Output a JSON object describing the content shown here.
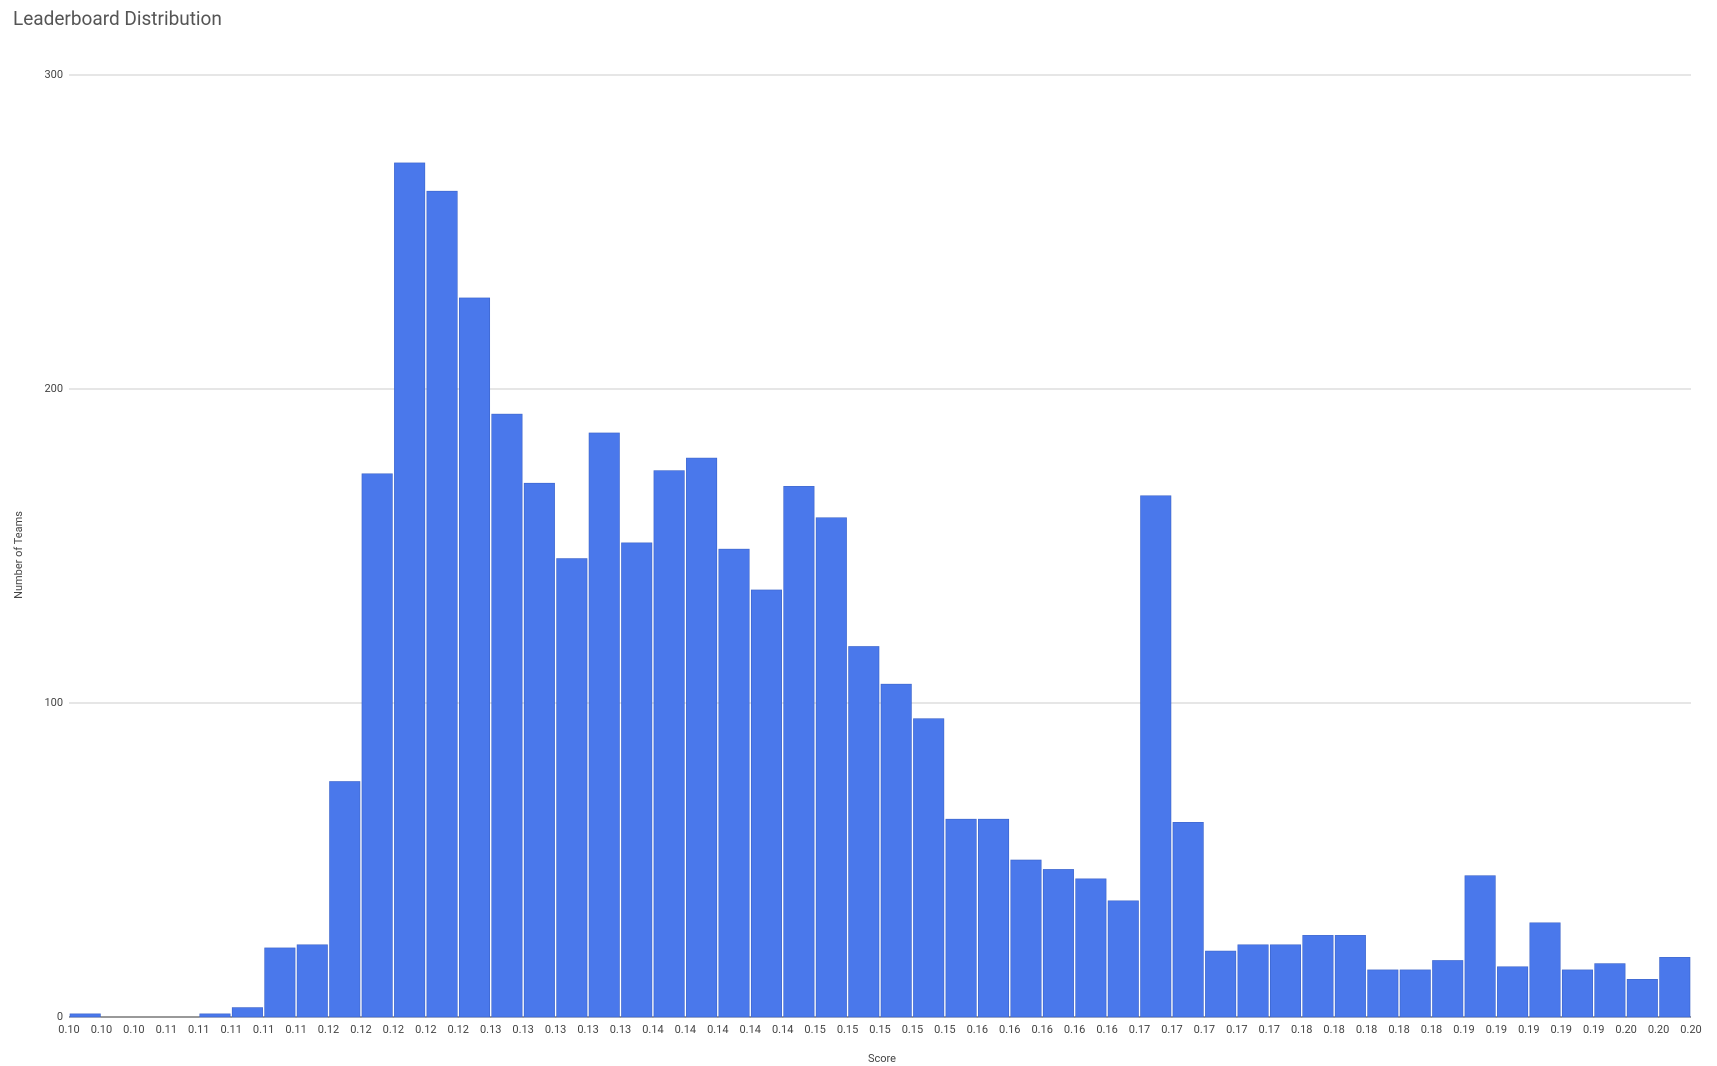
{
  "chart_data": {
    "type": "histogram",
    "title": "Leaderboard Distribution",
    "x_label": "Score",
    "y_label": "Number of Teams",
    "bins": [
      {
        "value": 0.1,
        "label": "0.10"
      },
      {
        "value": 0.102,
        "label": "0.10"
      },
      {
        "value": 0.104,
        "label": "0.10"
      },
      {
        "value": 0.106,
        "label": "0.11"
      },
      {
        "value": 0.108,
        "label": "0.11"
      },
      {
        "value": 0.11,
        "label": "0.11"
      },
      {
        "value": 0.112,
        "label": "0.11"
      },
      {
        "value": 0.114,
        "label": "0.11"
      },
      {
        "value": 0.116,
        "label": "0.12"
      },
      {
        "value": 0.118,
        "label": "0.12"
      },
      {
        "value": 0.12,
        "label": "0.12"
      },
      {
        "value": 0.122,
        "label": "0.12"
      },
      {
        "value": 0.124,
        "label": "0.12"
      },
      {
        "value": 0.126,
        "label": "0.13"
      },
      {
        "value": 0.128,
        "label": "0.13"
      },
      {
        "value": 0.13,
        "label": "0.13"
      },
      {
        "value": 0.132,
        "label": "0.13"
      },
      {
        "value": 0.134,
        "label": "0.13"
      },
      {
        "value": 0.136,
        "label": "0.14"
      },
      {
        "value": 0.138,
        "label": "0.14"
      },
      {
        "value": 0.14,
        "label": "0.14"
      },
      {
        "value": 0.142,
        "label": "0.14"
      },
      {
        "value": 0.144,
        "label": "0.14"
      },
      {
        "value": 0.146,
        "label": "0.15"
      },
      {
        "value": 0.148,
        "label": "0.15"
      },
      {
        "value": 0.15,
        "label": "0.15"
      },
      {
        "value": 0.152,
        "label": "0.15"
      },
      {
        "value": 0.154,
        "label": "0.15"
      },
      {
        "value": 0.156,
        "label": "0.16"
      },
      {
        "value": 0.158,
        "label": "0.16"
      },
      {
        "value": 0.16,
        "label": "0.16"
      },
      {
        "value": 0.162,
        "label": "0.16"
      },
      {
        "value": 0.164,
        "label": "0.16"
      },
      {
        "value": 0.166,
        "label": "0.17"
      },
      {
        "value": 0.168,
        "label": "0.17"
      },
      {
        "value": 0.17,
        "label": "0.17"
      },
      {
        "value": 0.172,
        "label": "0.17"
      },
      {
        "value": 0.174,
        "label": "0.17"
      },
      {
        "value": 0.176,
        "label": "0.18"
      },
      {
        "value": 0.178,
        "label": "0.18"
      },
      {
        "value": 0.18,
        "label": "0.18"
      },
      {
        "value": 0.182,
        "label": "0.18"
      },
      {
        "value": 0.184,
        "label": "0.18"
      },
      {
        "value": 0.186,
        "label": "0.19"
      },
      {
        "value": 0.188,
        "label": "0.19"
      },
      {
        "value": 0.19,
        "label": "0.19"
      },
      {
        "value": 0.192,
        "label": "0.19"
      },
      {
        "value": 0.194,
        "label": "0.19"
      },
      {
        "value": 0.196,
        "label": "0.20"
      },
      {
        "value": 0.198,
        "label": "0.20"
      },
      {
        "value": 0.2,
        "label": "0.20"
      }
    ],
    "values": [
      1,
      0,
      0,
      0,
      1,
      3,
      22,
      23,
      75,
      173,
      272,
      263,
      229,
      192,
      170,
      146,
      186,
      151,
      174,
      178,
      149,
      136,
      169,
      159,
      118,
      106,
      95,
      63,
      63,
      50,
      47,
      44,
      37,
      166,
      62,
      21,
      23,
      23,
      26,
      26,
      15,
      15,
      18,
      45,
      16,
      30,
      15,
      17,
      12,
      19
    ],
    "color": "#4a78eb",
    "xlim": [
      0.1,
      0.2
    ],
    "ylim": [
      0,
      300
    ],
    "yticks": [
      0,
      100,
      200,
      300
    ],
    "grid": true
  }
}
